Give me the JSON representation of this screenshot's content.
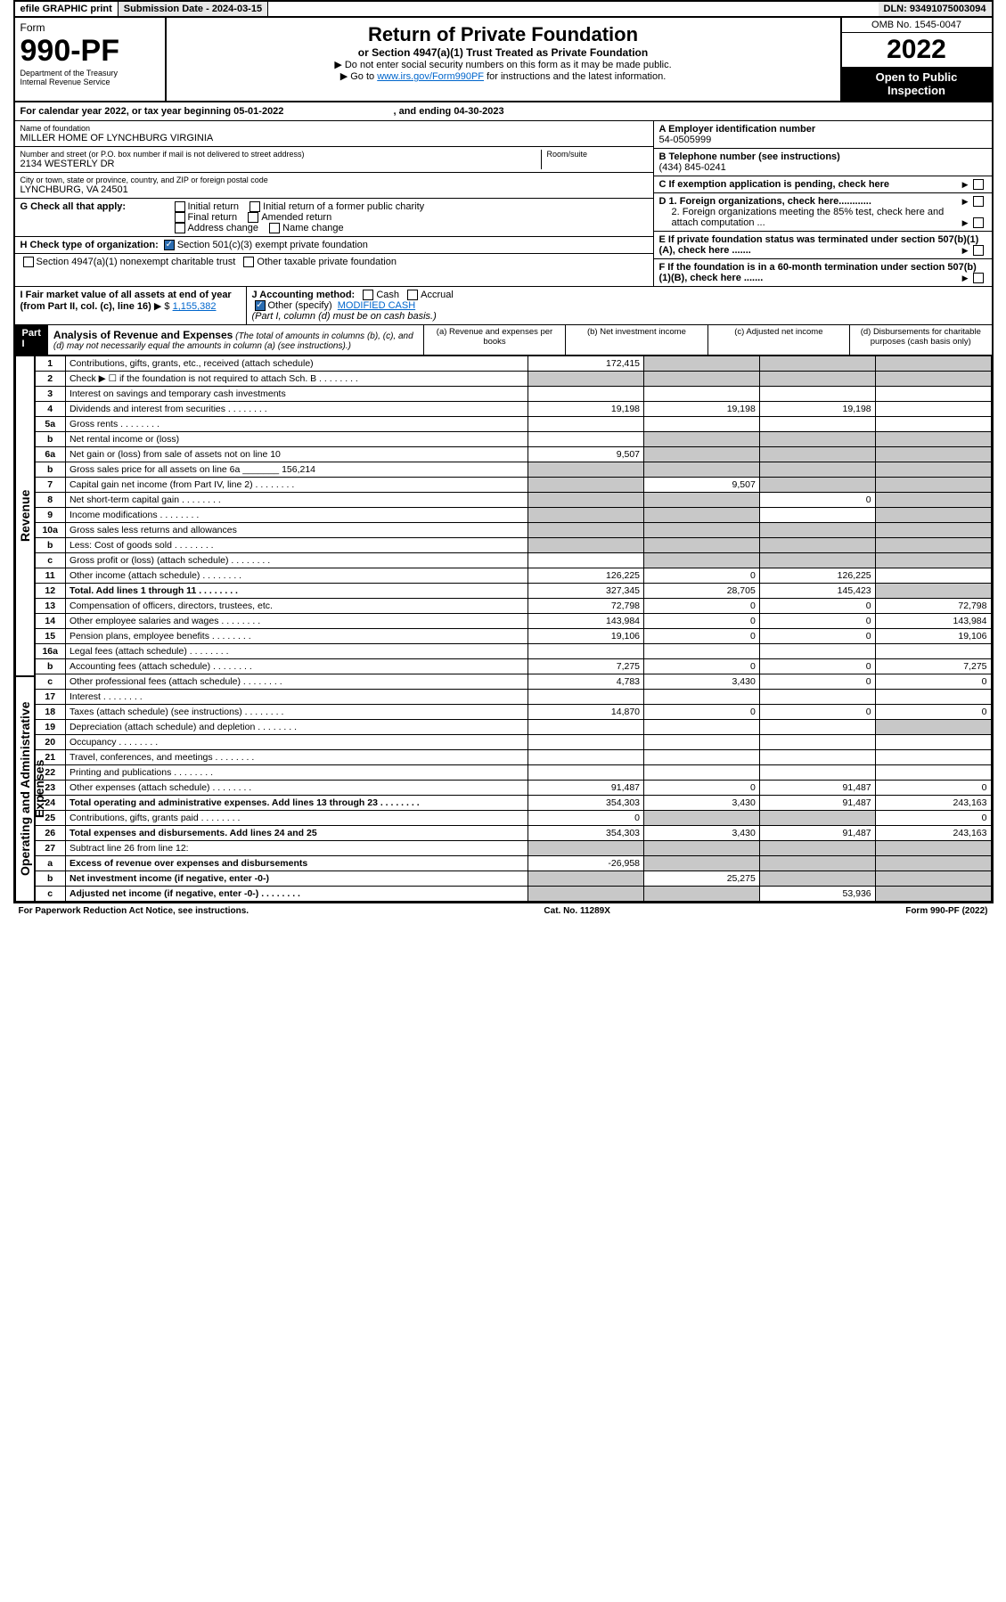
{
  "top": {
    "efile": "efile GRAPHIC print",
    "sub_date_lbl": "Submission Date - 2024-03-15",
    "dln": "DLN: 93491075003094"
  },
  "hdr": {
    "form_word": "Form",
    "form_no": "990-PF",
    "dept": "Department of the Treasury",
    "irs": "Internal Revenue Service",
    "title": "Return of Private Foundation",
    "sub": "or Section 4947(a)(1) Trust Treated as Private Foundation",
    "instr1": "▶ Do not enter social security numbers on this form as it may be made public.",
    "instr2_pre": "▶ Go to ",
    "instr2_link": "www.irs.gov/Form990PF",
    "instr2_post": " for instructions and the latest information.",
    "omb": "OMB No. 1545-0047",
    "year": "2022",
    "opb": "Open to Public Inspection"
  },
  "cal": {
    "text": "For calendar year 2022, or tax year beginning 05-01-2022",
    "end": ", and ending 04-30-2023"
  },
  "id": {
    "name_lbl": "Name of foundation",
    "name": "MILLER HOME OF LYNCHBURG VIRGINIA",
    "addr_lbl": "Number and street (or P.O. box number if mail is not delivered to street address)",
    "addr": "2134 WESTERLY DR",
    "room_lbl": "Room/suite",
    "city_lbl": "City or town, state or province, country, and ZIP or foreign postal code",
    "city": "LYNCHBURG, VA  24501",
    "a_lbl": "A Employer identification number",
    "a_val": "54-0505999",
    "b_lbl": "B Telephone number (see instructions)",
    "b_val": "(434) 845-0241",
    "c_lbl": "C If exemption application is pending, check here",
    "d1": "D 1. Foreign organizations, check here............",
    "d2": "2. Foreign organizations meeting the 85% test, check here and attach computation ...",
    "e": "E  If private foundation status was terminated under section 507(b)(1)(A), check here .......",
    "f": "F  If the foundation is in a 60-month termination under section 507(b)(1)(B), check here ......."
  },
  "g": {
    "lbl": "G Check all that apply:",
    "o1": "Initial return",
    "o2": "Initial return of a former public charity",
    "o3": "Final return",
    "o4": "Amended return",
    "o5": "Address change",
    "o6": "Name change"
  },
  "h": {
    "lbl": "H Check type of organization:",
    "o1": "Section 501(c)(3) exempt private foundation",
    "o2": "Section 4947(a)(1) nonexempt charitable trust",
    "o3": "Other taxable private foundation"
  },
  "i": {
    "lbl": "I Fair market value of all assets at end of year (from Part II, col. (c), line 16)",
    "val": "1,155,382",
    "arrow": "▶ $"
  },
  "j": {
    "lbl": "J Accounting method:",
    "cash": "Cash",
    "accr": "Accrual",
    "other": "Other (specify)",
    "spec": "MODIFIED CASH",
    "note": "(Part I, column (d) must be on cash basis.)"
  },
  "part1": {
    "lbl": "Part I",
    "title": "Analysis of Revenue and Expenses",
    "note": "(The total of amounts in columns (b), (c), and (d) may not necessarily equal the amounts in column (a) (see instructions).)",
    "col_a": "(a)  Revenue and expenses per books",
    "col_b": "(b)  Net investment income",
    "col_c": "(c)  Adjusted net income",
    "col_d": "(d)  Disbursements for charitable purposes (cash basis only)"
  },
  "side": {
    "rev": "Revenue",
    "opex": "Operating and Administrative Expenses"
  },
  "rows": [
    {
      "n": "1",
      "d": "Contributions, gifts, grants, etc., received (attach schedule)",
      "a": "172,415",
      "b": "g",
      "c": "g",
      "dg": "g"
    },
    {
      "n": "2",
      "d": "Check ▶ ☐ if the foundation is not required to attach Sch. B",
      "dots": true,
      "a": "g",
      "b": "g",
      "c": "g",
      "dg": "g"
    },
    {
      "n": "3",
      "d": "Interest on savings and temporary cash investments"
    },
    {
      "n": "4",
      "d": "Dividends and interest from securities",
      "dots": true,
      "a": "19,198",
      "b": "19,198",
      "c": "19,198"
    },
    {
      "n": "5a",
      "d": "Gross rents",
      "dots": true
    },
    {
      "n": "b",
      "d": "Net rental income or (loss)",
      "b": "g",
      "c": "g",
      "dg": "g"
    },
    {
      "n": "6a",
      "d": "Net gain or (loss) from sale of assets not on line 10",
      "a": "9,507",
      "b": "g",
      "c": "g",
      "dg": "g"
    },
    {
      "n": "b",
      "d": "Gross sales price for all assets on line 6a _______ 156,214",
      "a": "g",
      "b": "g",
      "c": "g",
      "dg": "g"
    },
    {
      "n": "7",
      "d": "Capital gain net income (from Part IV, line 2)",
      "dots": true,
      "a": "g",
      "b": "9,507",
      "c": "g",
      "dg": "g"
    },
    {
      "n": "8",
      "d": "Net short-term capital gain",
      "dots": true,
      "a": "g",
      "b": "g",
      "c": "0",
      "dg": "g"
    },
    {
      "n": "9",
      "d": "Income modifications",
      "dots": true,
      "a": "g",
      "b": "g",
      "dg": "g"
    },
    {
      "n": "10a",
      "d": "Gross sales less returns and allowances",
      "a": "g",
      "b": "g",
      "c": "g",
      "dg": "g"
    },
    {
      "n": "b",
      "d": "Less: Cost of goods sold",
      "dots": true,
      "a": "g",
      "b": "g",
      "c": "g",
      "dg": "g"
    },
    {
      "n": "c",
      "d": "Gross profit or (loss) (attach schedule)",
      "dots": true,
      "b": "g",
      "c": "g",
      "dg": "g"
    },
    {
      "n": "11",
      "d": "Other income (attach schedule)",
      "dots": true,
      "a": "126,225",
      "b": "0",
      "c": "126,225"
    },
    {
      "n": "12",
      "d": "Total. Add lines 1 through 11",
      "dots": true,
      "bold": true,
      "a": "327,345",
      "b": "28,705",
      "c": "145,423",
      "dg": "g"
    },
    {
      "n": "13",
      "d": "Compensation of officers, directors, trustees, etc.",
      "a": "72,798",
      "b": "0",
      "c": "0",
      "dv": "72,798"
    },
    {
      "n": "14",
      "d": "Other employee salaries and wages",
      "dots": true,
      "a": "143,984",
      "b": "0",
      "c": "0",
      "dv": "143,984"
    },
    {
      "n": "15",
      "d": "Pension plans, employee benefits",
      "dots": true,
      "a": "19,106",
      "b": "0",
      "c": "0",
      "dv": "19,106"
    },
    {
      "n": "16a",
      "d": "Legal fees (attach schedule)",
      "dots": true
    },
    {
      "n": "b",
      "d": "Accounting fees (attach schedule)",
      "dots": true,
      "a": "7,275",
      "b": "0",
      "c": "0",
      "dv": "7,275"
    },
    {
      "n": "c",
      "d": "Other professional fees (attach schedule)",
      "dots": true,
      "a": "4,783",
      "b": "3,430",
      "c": "0",
      "dv": "0"
    },
    {
      "n": "17",
      "d": "Interest",
      "dots": true
    },
    {
      "n": "18",
      "d": "Taxes (attach schedule) (see instructions)",
      "dots": true,
      "a": "14,870",
      "b": "0",
      "c": "0",
      "dv": "0"
    },
    {
      "n": "19",
      "d": "Depreciation (attach schedule) and depletion",
      "dots": true,
      "dg": "g"
    },
    {
      "n": "20",
      "d": "Occupancy",
      "dots": true
    },
    {
      "n": "21",
      "d": "Travel, conferences, and meetings",
      "dots": true
    },
    {
      "n": "22",
      "d": "Printing and publications",
      "dots": true
    },
    {
      "n": "23",
      "d": "Other expenses (attach schedule)",
      "dots": true,
      "a": "91,487",
      "b": "0",
      "c": "91,487",
      "dv": "0"
    },
    {
      "n": "24",
      "d": "Total operating and administrative expenses. Add lines 13 through 23",
      "dots": true,
      "bold": true,
      "a": "354,303",
      "b": "3,430",
      "c": "91,487",
      "dv": "243,163"
    },
    {
      "n": "25",
      "d": "Contributions, gifts, grants paid",
      "dots": true,
      "a": "0",
      "b": "g",
      "c": "g",
      "dv": "0"
    },
    {
      "n": "26",
      "d": "Total expenses and disbursements. Add lines 24 and 25",
      "bold": true,
      "a": "354,303",
      "b": "3,430",
      "c": "91,487",
      "dv": "243,163"
    },
    {
      "n": "27",
      "d": "Subtract line 26 from line 12:",
      "a": "g",
      "b": "g",
      "c": "g",
      "dg": "g"
    },
    {
      "n": "a",
      "d": "Excess of revenue over expenses and disbursements",
      "bold": true,
      "a": "-26,958",
      "b": "g",
      "c": "g",
      "dg": "g"
    },
    {
      "n": "b",
      "d": "Net investment income (if negative, enter -0-)",
      "bold": true,
      "a": "g",
      "b": "25,275",
      "c": "g",
      "dg": "g"
    },
    {
      "n": "c",
      "d": "Adjusted net income (if negative, enter -0-)",
      "dots": true,
      "bold": true,
      "a": "g",
      "b": "g",
      "c": "53,936",
      "dg": "g"
    }
  ],
  "foot": {
    "pra": "For Paperwork Reduction Act Notice, see instructions.",
    "cat": "Cat. No. 11289X",
    "form": "Form 990-PF (2022)"
  }
}
